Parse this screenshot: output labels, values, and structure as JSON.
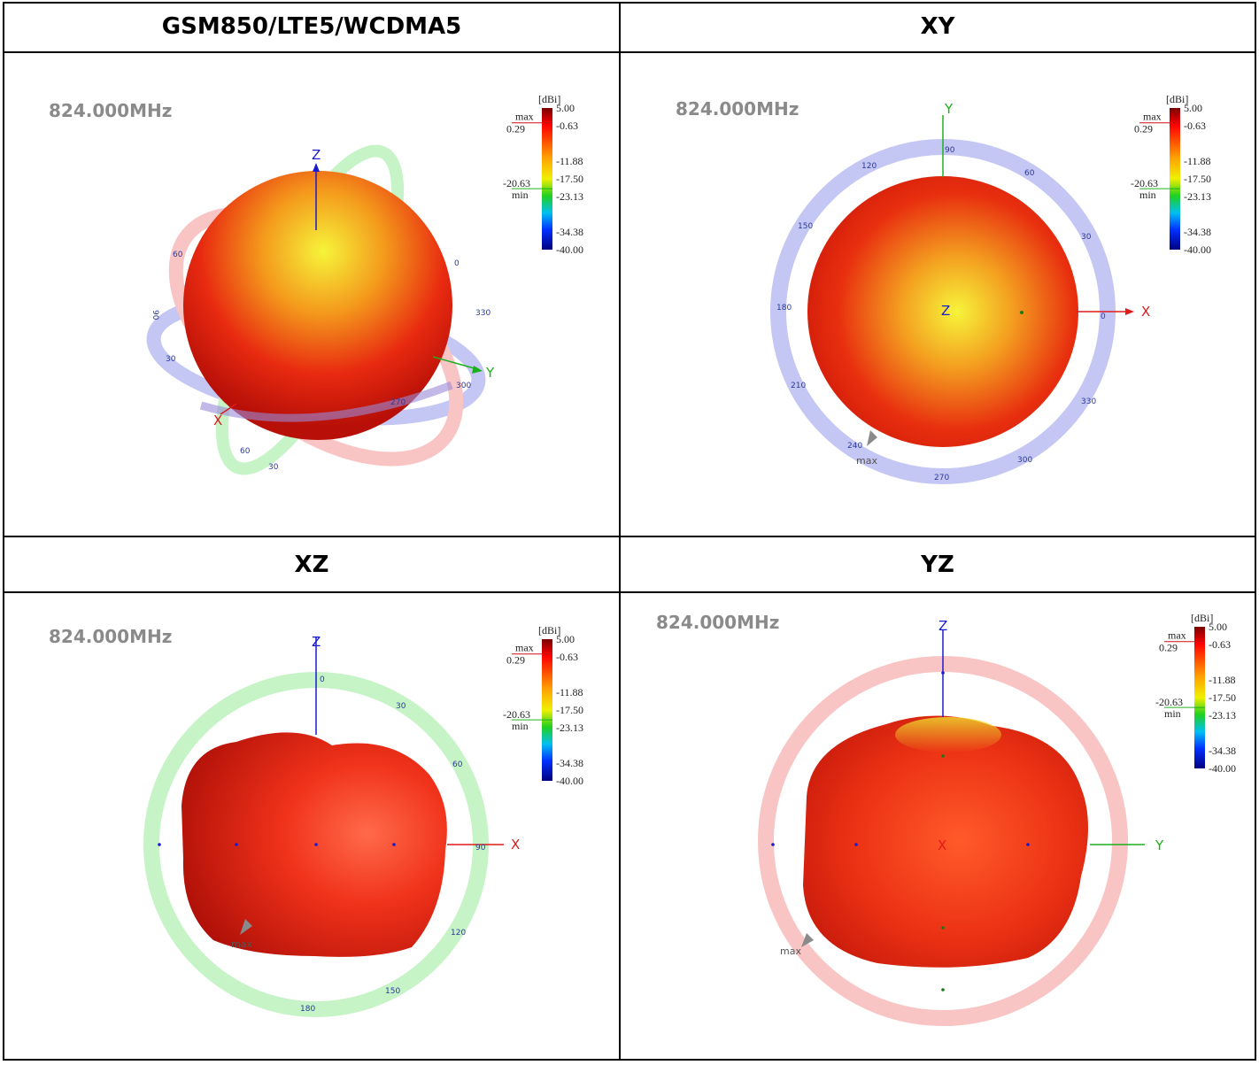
{
  "headers": {
    "top_left": "GSM850/LTE5/WCDMA5",
    "top_right": "XY",
    "bottom_left": "XZ",
    "bottom_right": "YZ"
  },
  "plots": {
    "frequency": "824.000MHz",
    "colorbar": {
      "unit": "[dBi]",
      "ticks": [
        "5.00",
        "-0.63",
        "-11.88",
        "-17.50",
        "-23.13",
        "-34.38",
        "-40.00"
      ],
      "max_label": "max",
      "max_value": "0.29",
      "min_label": "min",
      "min_value": "-20.63"
    },
    "axes": {
      "x": "X",
      "y": "Y",
      "z": "Z"
    },
    "max_marker": "max",
    "xy_ticks": [
      "90",
      "60",
      "30",
      "0",
      "330",
      "300",
      "270",
      "240",
      "210",
      "180",
      "150",
      "120"
    ],
    "xz_ticks": [
      "0",
      "30",
      "60",
      "90",
      "120",
      "150",
      "180"
    ],
    "iso_ticks": [
      "90",
      "60",
      "30",
      "0",
      "330",
      "300",
      "270"
    ]
  },
  "colors": {
    "blue_ring": "#c4c6f4",
    "red_ring": "#f9c4c4",
    "green_ring": "#c6f4c6",
    "pattern_red": "#e42010",
    "pattern_yellow": "#f2f230"
  }
}
